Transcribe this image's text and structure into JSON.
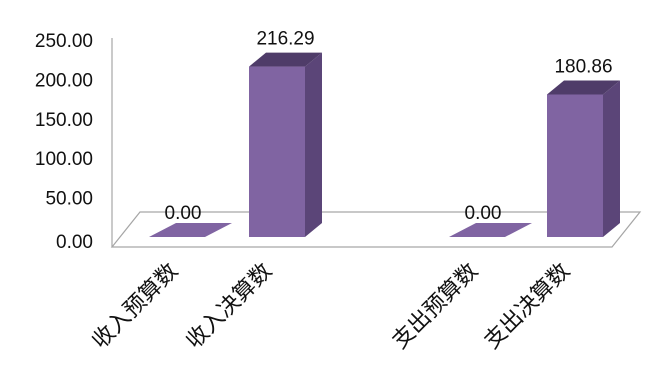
{
  "chart_data": {
    "type": "bar",
    "three_d": true,
    "categories": [
      "收入预算数",
      "收入决算数",
      "支出预算数",
      "支出决算数"
    ],
    "values": [
      0.0,
      216.29,
      0.0,
      180.86
    ],
    "data_labels": [
      "0.00",
      "216.29",
      "0.00",
      "180.86"
    ],
    "y_ticks": [
      "0.00",
      "50.00",
      "100.00",
      "150.00",
      "200.00",
      "250.00"
    ],
    "ylim": [
      0,
      250
    ],
    "grid": false,
    "legend": "none",
    "title": "",
    "xlabel": "",
    "ylabel": ""
  },
  "colors": {
    "bar_front": "#8064a2",
    "bar_side": "#5b4578",
    "bar_top": "#4f3c69",
    "floor_fill": "#ffffff",
    "floor_stroke": "#a6a6a6",
    "axis": "#a6a6a6",
    "text": "#111111"
  }
}
